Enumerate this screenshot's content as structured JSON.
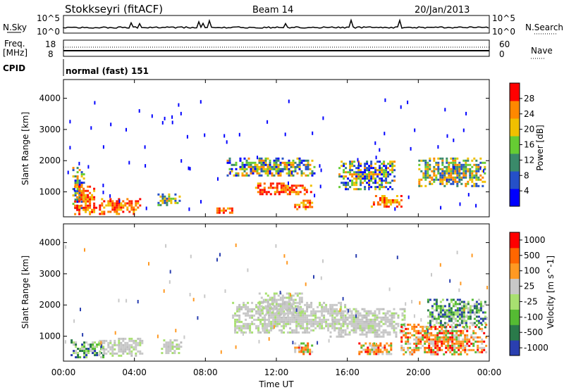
{
  "header": {
    "station": "Stokkseyri (fitACF)",
    "beam": "Beam 14",
    "date": "20/Jan/2013"
  },
  "nsky_panel": {
    "label": "N.Sky",
    "right_label": "N.Search",
    "left_ticks": [
      "10^5",
      "10^0"
    ],
    "right_ticks": [
      "10^5",
      "10^0"
    ]
  },
  "freq_panel": {
    "label_line1": "Freq.",
    "label_line2": "[MHz]",
    "left_ticks": [
      "18",
      "8"
    ],
    "right_ticks": [
      "60",
      "0"
    ],
    "right_label": "Nave"
  },
  "cpid_panel": {
    "label": "CPID",
    "value": "normal (fast) 151"
  },
  "chart_data": [
    {
      "type": "heatmap",
      "panel": "power",
      "ylabel": "Slant Range [km]",
      "yticks": [
        "1000",
        "2000",
        "3000",
        "4000"
      ],
      "ylim": [
        200,
        4600
      ],
      "xlim": [
        0,
        24
      ],
      "colorbar": {
        "label": "Power [dB]",
        "ticks": [
          "4",
          "8",
          "12",
          "16",
          "20",
          "24",
          "28"
        ],
        "colors": [
          "#0000ff",
          "#2550c8",
          "#3a8a6a",
          "#66cc33",
          "#f0c000",
          "#ff8800",
          "#ff0000"
        ]
      },
      "regions": [
        {
          "t0": 0.5,
          "t1": 1.1,
          "r0": 450,
          "r1": 1800,
          "level": "mixed"
        },
        {
          "t0": 0.6,
          "t1": 1.8,
          "r0": 300,
          "r1": 1200,
          "level": "high"
        },
        {
          "t0": 2.0,
          "t1": 4.3,
          "r0": 300,
          "r1": 800,
          "level": "high"
        },
        {
          "t0": 5.3,
          "t1": 6.6,
          "r0": 600,
          "r1": 950,
          "level": "mid"
        },
        {
          "t0": 8.5,
          "t1": 9.5,
          "r0": 350,
          "r1": 500,
          "level": "high"
        },
        {
          "t0": 9.2,
          "t1": 14.2,
          "r0": 1500,
          "r1": 2100,
          "level": "mixed"
        },
        {
          "t0": 10.8,
          "t1": 14.0,
          "r0": 900,
          "r1": 1300,
          "level": "high"
        },
        {
          "t0": 13.0,
          "t1": 14.0,
          "r0": 450,
          "r1": 750,
          "level": "high"
        },
        {
          "t0": 15.5,
          "t1": 18.7,
          "r0": 1100,
          "r1": 2000,
          "level": "mixed"
        },
        {
          "t0": 17.2,
          "t1": 19.0,
          "r0": 550,
          "r1": 900,
          "level": "high"
        },
        {
          "t0": 20.0,
          "t1": 23.8,
          "r0": 1200,
          "r1": 2100,
          "level": "mid"
        }
      ]
    },
    {
      "type": "heatmap",
      "panel": "velocity",
      "ylabel": "Slant Range [km]",
      "yticks": [
        "1000",
        "2000",
        "3000",
        "4000"
      ],
      "ylim": [
        200,
        4600
      ],
      "xlim": [
        0,
        24
      ],
      "xticks": [
        "00:00",
        "04:00",
        "08:00",
        "12:00",
        "16:00",
        "20:00",
        "00:00"
      ],
      "xlabel": "Time UT",
      "colorbar": {
        "label": "Velocity [m s^-1]",
        "ticks": [
          "1000",
          "500",
          "100",
          "25",
          "-25",
          "-100",
          "-500",
          "-1000"
        ],
        "colors": [
          "#2a3fb0",
          "#2a7a4a",
          "#55bb33",
          "#a8e070",
          "#c8c8c8",
          "#ff9922",
          "#ff6600",
          "#ff0000"
        ]
      },
      "regions": [
        {
          "t0": 0.4,
          "t1": 2.2,
          "r0": 300,
          "r1": 900,
          "level": "green"
        },
        {
          "t0": 2.0,
          "t1": 4.5,
          "r0": 400,
          "r1": 950,
          "level": "grey"
        },
        {
          "t0": 5.5,
          "t1": 6.6,
          "r0": 450,
          "r1": 900,
          "level": "grey"
        },
        {
          "t0": 9.5,
          "t1": 16.0,
          "r0": 1100,
          "r1": 2100,
          "level": "grey"
        },
        {
          "t0": 11.0,
          "t1": 13.5,
          "r0": 1700,
          "r1": 2400,
          "level": "grey"
        },
        {
          "t0": 13.0,
          "t1": 14.0,
          "r0": 450,
          "r1": 800,
          "level": "orange"
        },
        {
          "t0": 15.0,
          "t1": 19.2,
          "r0": 1000,
          "r1": 1900,
          "level": "grey"
        },
        {
          "t0": 16.5,
          "t1": 18.5,
          "r0": 400,
          "r1": 800,
          "level": "orange"
        },
        {
          "t0": 19.0,
          "t1": 23.8,
          "r0": 400,
          "r1": 1400,
          "level": "orange"
        },
        {
          "t0": 20.5,
          "t1": 23.8,
          "r0": 1300,
          "r1": 2200,
          "level": "green"
        }
      ]
    }
  ]
}
